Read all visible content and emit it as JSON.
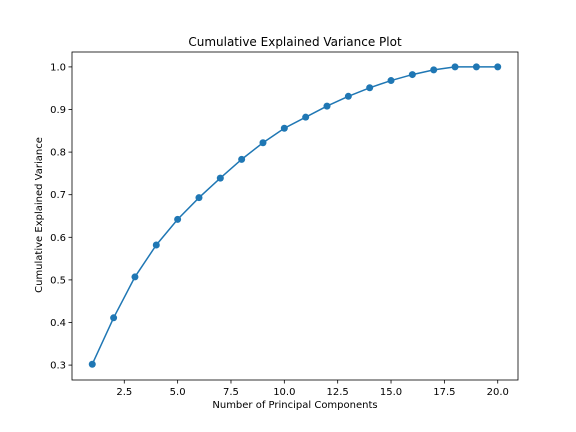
{
  "chart_data": {
    "type": "line",
    "title": "Cumulative Explained Variance Plot",
    "xlabel": "Number of Principal Components",
    "ylabel": "Cumulative Explained Variance",
    "xlim": [
      0.05,
      20.95
    ],
    "ylim": [
      0.265,
      1.035
    ],
    "xticks": [
      2.5,
      5.0,
      7.5,
      10.0,
      12.5,
      15.0,
      17.5,
      20.0
    ],
    "xtick_labels": [
      "2.5",
      "5.0",
      "7.5",
      "10.0",
      "12.5",
      "15.0",
      "17.5",
      "20.0"
    ],
    "yticks": [
      0.3,
      0.4,
      0.5,
      0.6,
      0.7,
      0.8,
      0.9,
      1.0
    ],
    "ytick_labels": [
      "0.3",
      "0.4",
      "0.5",
      "0.6",
      "0.7",
      "0.8",
      "0.9",
      "1.0"
    ],
    "grid": false,
    "series": [
      {
        "color": "#1f77b4",
        "marker": "circle",
        "x": [
          1,
          2,
          3,
          4,
          5,
          6,
          7,
          8,
          9,
          10,
          11,
          12,
          13,
          14,
          15,
          16,
          17,
          18,
          19,
          20
        ],
        "y": [
          0.302,
          0.411,
          0.507,
          0.582,
          0.642,
          0.693,
          0.739,
          0.783,
          0.822,
          0.856,
          0.882,
          0.908,
          0.931,
          0.951,
          0.968,
          0.982,
          0.993,
          1.0,
          1.0,
          1.0
        ]
      }
    ]
  }
}
